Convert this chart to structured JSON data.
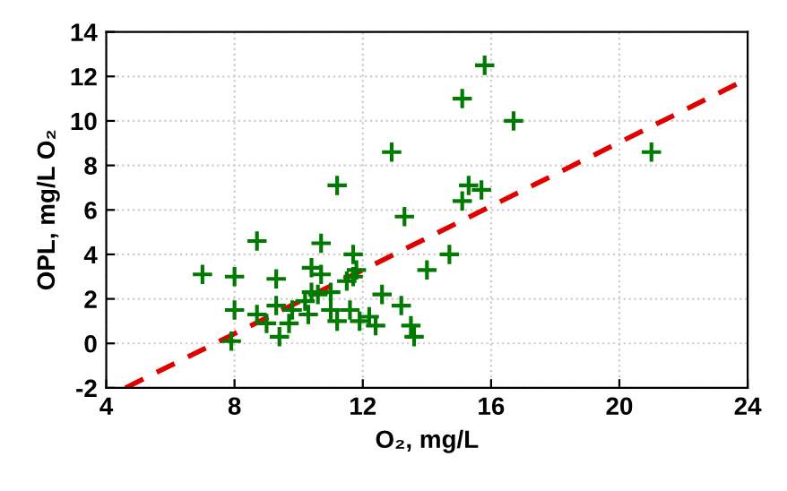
{
  "chart_data": {
    "type": "scatter",
    "xlabel": "O₂, mg/L",
    "ylabel": "OPL, mg/L O₂",
    "xlim": [
      4,
      24
    ],
    "ylim": [
      -2,
      14
    ],
    "xticks": [
      4,
      8,
      12,
      16,
      20,
      24
    ],
    "yticks": [
      -2,
      0,
      2,
      4,
      6,
      8,
      10,
      12,
      14
    ],
    "grid": true,
    "legend": false,
    "series": [
      {
        "marker": "cross",
        "color": "#007a00",
        "x": [
          7.0,
          8.0,
          8.0,
          7.9,
          8.7,
          8.7,
          9.3,
          9.3,
          9.0,
          9.4,
          9.7,
          9.8,
          10.2,
          10.3,
          10.4,
          10.6,
          10.4,
          10.7,
          10.7,
          11.0,
          11.0,
          11.2,
          11.2,
          11.5,
          11.7,
          11.7,
          11.8,
          11.9,
          12.2,
          12.4,
          12.6,
          12.9,
          13.2,
          13.3,
          13.5,
          13.6,
          14.0,
          14.7,
          15.1,
          15.3,
          15.7,
          15.1,
          15.8,
          16.7,
          21.0,
          11.6
        ],
        "values": [
          3.1,
          3.0,
          1.5,
          0.1,
          4.6,
          1.3,
          2.9,
          1.7,
          0.9,
          0.3,
          0.9,
          1.5,
          1.9,
          1.3,
          2.3,
          2.2,
          3.4,
          4.5,
          3.1,
          2.3,
          1.5,
          7.1,
          1.0,
          2.8,
          4.0,
          3.0,
          3.3,
          1.0,
          1.2,
          0.8,
          2.2,
          8.6,
          1.7,
          5.7,
          0.8,
          0.3,
          3.3,
          4.0,
          6.4,
          7.1,
          6.9,
          11.0,
          12.5,
          10.0,
          8.6,
          1.5
        ]
      },
      {
        "type": "line",
        "line_style": "dashed",
        "color": "#e00000",
        "x": [
          4.6,
          24
        ],
        "values": [
          -2,
          11.9
        ]
      }
    ]
  }
}
